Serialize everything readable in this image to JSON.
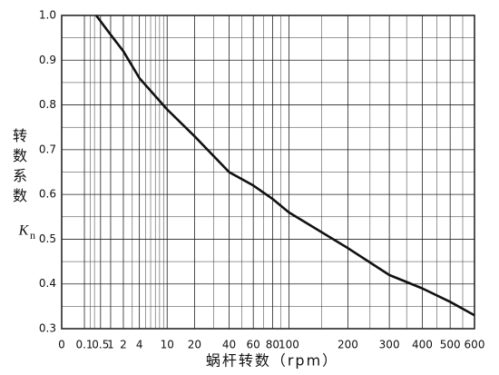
{
  "chart_data": {
    "type": "line",
    "y_label": "转数系数",
    "y_symbol": "K",
    "y_symbol_sub": "n",
    "x_label": "蜗杆转数（rpm）",
    "x": [
      0.35,
      1,
      2,
      4,
      10,
      20,
      40,
      60,
      80,
      100,
      200,
      300,
      400,
      500,
      600
    ],
    "values": [
      1.0,
      0.957,
      0.92,
      0.86,
      0.79,
      0.73,
      0.65,
      0.62,
      0.59,
      0.56,
      0.48,
      0.42,
      0.39,
      0.36,
      0.33
    ],
    "color": "#111111",
    "xscale": "cube-root",
    "xlim": [
      0,
      600
    ],
    "xticks": [
      0,
      0.1,
      0.5,
      1,
      2,
      4,
      10,
      20,
      40,
      60,
      80,
      100,
      200,
      300,
      400,
      500,
      600
    ],
    "xgrid_minor": [
      0.2,
      0.3,
      3,
      5,
      6,
      7,
      8,
      9,
      30,
      50,
      70,
      90,
      150,
      250,
      350,
      450,
      550
    ],
    "ylim": [
      0.3,
      1.0
    ],
    "yticks": [
      {
        "value": 1.0,
        "label": "1.0"
      },
      0.9,
      0.8,
      0.7,
      0.6,
      0.5,
      0.4,
      0.3
    ],
    "ygrid_minor": [
      0.35,
      0.45,
      0.55,
      0.65,
      0.75,
      0.85,
      0.95
    ],
    "grid": true
  }
}
